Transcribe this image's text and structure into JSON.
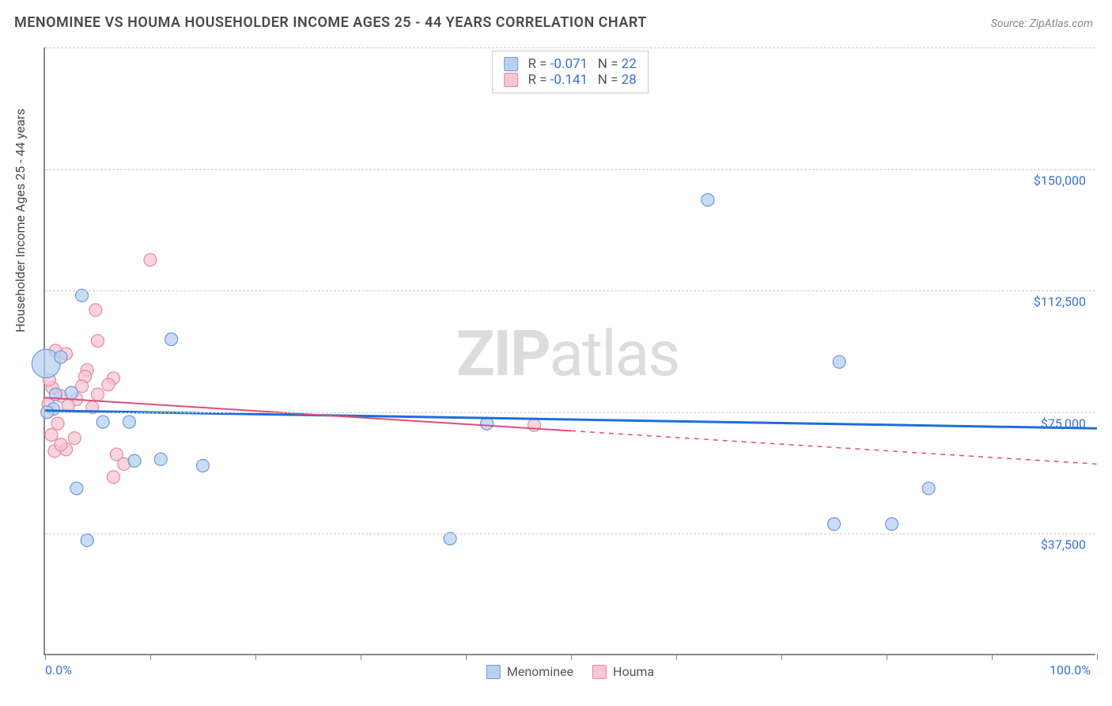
{
  "title": "MENOMINEE VS HOUMA HOUSEHOLDER INCOME AGES 25 - 44 YEARS CORRELATION CHART",
  "source": "Source: ZipAtlas.com",
  "y_axis_title": "Householder Income Ages 25 - 44 years",
  "watermark_bold": "ZIP",
  "watermark_rest": "atlas",
  "chart": {
    "type": "scatter",
    "x_domain": [
      0,
      100
    ],
    "y_domain": [
      0,
      187500
    ],
    "x_ticks": [
      0,
      10,
      20,
      30,
      40,
      50,
      60,
      70,
      80,
      90,
      100
    ],
    "x_tick_labels_visible": {
      "0": "0.0%",
      "100": "100.0%"
    },
    "y_gridlines": [
      37500,
      75000,
      112500,
      150000,
      187500
    ],
    "y_grid_labels": {
      "37500": "$37,500",
      "75000": "$75,000",
      "112500": "$112,500",
      "150000": "$150,000"
    },
    "background_color": "#ffffff",
    "grid_color": "#cccccc",
    "axis_color": "#888888",
    "label_color": "#3b6fd6"
  },
  "series": [
    {
      "name": "Menominee",
      "fill": "#b8d0f0",
      "stroke": "#6a9ad8",
      "line_color": "#1e6fd9",
      "line_width": 3,
      "marker_r_default": 8,
      "stats": {
        "R_label": "R = ",
        "R": "-0.071",
        "N_label": "N = ",
        "N": "22"
      },
      "trend": {
        "x1": 0,
        "y1": 75500,
        "x2": 100,
        "y2": 70000,
        "solid_until_x": 100
      },
      "points": [
        {
          "x": 0.1,
          "y": 90000,
          "r": 18
        },
        {
          "x": 3.5,
          "y": 111000
        },
        {
          "x": 1.0,
          "y": 80500
        },
        {
          "x": 2.5,
          "y": 81000
        },
        {
          "x": 12.0,
          "y": 97500
        },
        {
          "x": 5.5,
          "y": 72000
        },
        {
          "x": 8.0,
          "y": 72000
        },
        {
          "x": 8.5,
          "y": 60000
        },
        {
          "x": 11.0,
          "y": 60500
        },
        {
          "x": 15.0,
          "y": 58500
        },
        {
          "x": 3.0,
          "y": 51500
        },
        {
          "x": 4.0,
          "y": 35500
        },
        {
          "x": 0.8,
          "y": 76000
        },
        {
          "x": 42.0,
          "y": 71500
        },
        {
          "x": 63.0,
          "y": 140500
        },
        {
          "x": 75.5,
          "y": 90500
        },
        {
          "x": 75.0,
          "y": 40500
        },
        {
          "x": 80.5,
          "y": 40500
        },
        {
          "x": 84.0,
          "y": 51500
        },
        {
          "x": 38.5,
          "y": 36000
        },
        {
          "x": 1.5,
          "y": 92000
        },
        {
          "x": 0.2,
          "y": 75000
        }
      ]
    },
    {
      "name": "Houma",
      "fill": "#f6c6d3",
      "stroke": "#e687a3",
      "line_color": "#e24b7a",
      "line_width": 2,
      "marker_r_default": 8,
      "stats": {
        "R_label": "R = ",
        "R": "-0.141",
        "N_label": "N = ",
        "N": "28"
      },
      "trend": {
        "x1": 0,
        "y1": 79500,
        "x2": 100,
        "y2": 59000,
        "solid_until_x": 50
      },
      "points": [
        {
          "x": 10.0,
          "y": 122000
        },
        {
          "x": 4.8,
          "y": 106500
        },
        {
          "x": 5.0,
          "y": 97000
        },
        {
          "x": 1.0,
          "y": 94000
        },
        {
          "x": 2.0,
          "y": 93000
        },
        {
          "x": 4.0,
          "y": 88000
        },
        {
          "x": 6.5,
          "y": 85500
        },
        {
          "x": 3.8,
          "y": 86000
        },
        {
          "x": 0.7,
          "y": 82500
        },
        {
          "x": 6.0,
          "y": 83500
        },
        {
          "x": 1.5,
          "y": 80000
        },
        {
          "x": 3.0,
          "y": 79000
        },
        {
          "x": 0.3,
          "y": 77500
        },
        {
          "x": 2.2,
          "y": 77000
        },
        {
          "x": 4.5,
          "y": 76500
        },
        {
          "x": 1.2,
          "y": 71500
        },
        {
          "x": 0.6,
          "y": 68000
        },
        {
          "x": 2.8,
          "y": 67000
        },
        {
          "x": 0.9,
          "y": 63000
        },
        {
          "x": 2.0,
          "y": 63500
        },
        {
          "x": 6.8,
          "y": 62000
        },
        {
          "x": 7.5,
          "y": 59000
        },
        {
          "x": 6.5,
          "y": 55000
        },
        {
          "x": 1.5,
          "y": 65000
        },
        {
          "x": 3.5,
          "y": 83000
        },
        {
          "x": 46.5,
          "y": 71000
        },
        {
          "x": 5.0,
          "y": 80500
        },
        {
          "x": 0.4,
          "y": 85000
        }
      ]
    }
  ],
  "bottom_legend": [
    {
      "label": "Menominee",
      "fill": "#b8d0f0",
      "stroke": "#6a9ad8"
    },
    {
      "label": "Houma",
      "fill": "#f6c6d3",
      "stroke": "#e687a3"
    }
  ]
}
